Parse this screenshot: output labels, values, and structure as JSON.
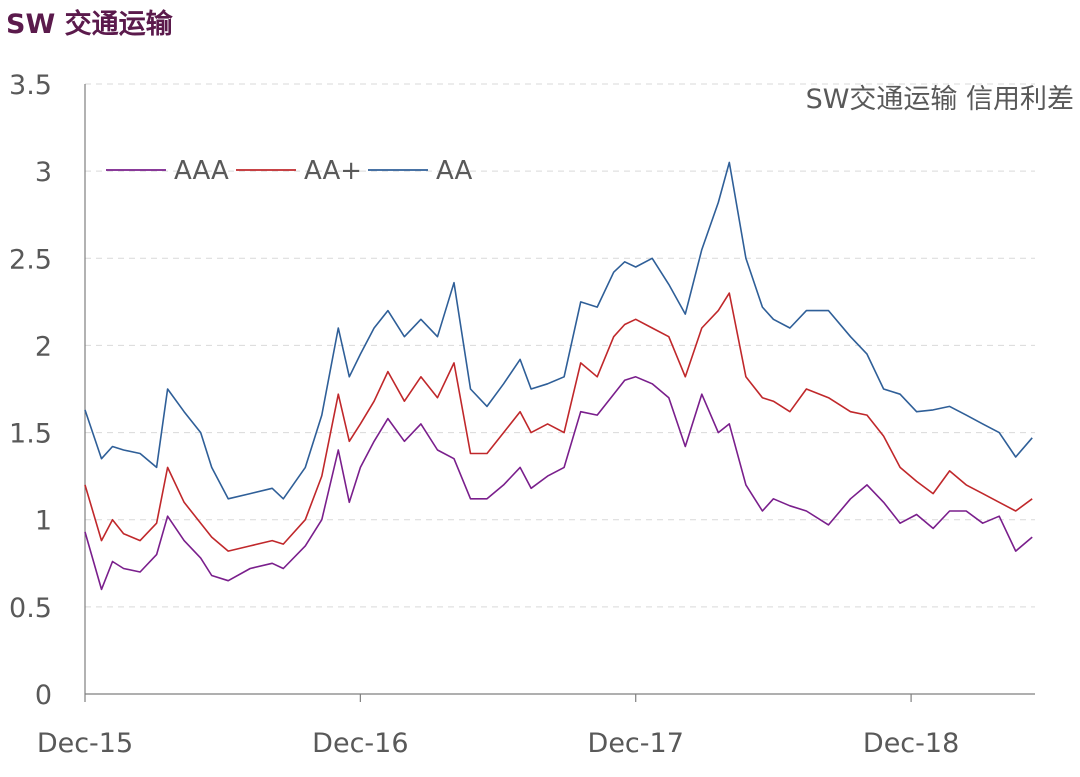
{
  "page": {
    "title": "SW 交通运输"
  },
  "chart_data": {
    "type": "line",
    "title": "SW交通运输 信用利差",
    "ylim": [
      0,
      3.5
    ],
    "yticks": [
      "0",
      "0.5",
      "1",
      "1.5",
      "2",
      "2.5",
      "3",
      "3.5"
    ],
    "xlim": [
      0,
      3.45
    ],
    "xticks": [
      {
        "label": "Dec-15",
        "pos": 0
      },
      {
        "label": "Dec-16",
        "pos": 1
      },
      {
        "label": "Dec-17",
        "pos": 2
      },
      {
        "label": "Dec-18",
        "pos": 3
      }
    ],
    "grid": "horizontal-dashed",
    "legend_position": "top-left",
    "series": [
      {
        "name": "AAA",
        "color": "#7a1f8c",
        "x": [
          0,
          0.06,
          0.1,
          0.14,
          0.2,
          0.26,
          0.3,
          0.36,
          0.42,
          0.46,
          0.52,
          0.6,
          0.68,
          0.72,
          0.8,
          0.86,
          0.92,
          0.96,
          1.0,
          1.05,
          1.1,
          1.16,
          1.22,
          1.28,
          1.34,
          1.4,
          1.46,
          1.52,
          1.58,
          1.62,
          1.68,
          1.74,
          1.8,
          1.86,
          1.92,
          1.96,
          2.0,
          2.06,
          2.12,
          2.18,
          2.24,
          2.3,
          2.34,
          2.4,
          2.46,
          2.5,
          2.56,
          2.62,
          2.7,
          2.78,
          2.84,
          2.9,
          2.96,
          3.02,
          3.08,
          3.14,
          3.2,
          3.26,
          3.32,
          3.38,
          3.44
        ],
        "values": [
          0.93,
          0.6,
          0.76,
          0.72,
          0.7,
          0.8,
          1.02,
          0.88,
          0.78,
          0.68,
          0.65,
          0.72,
          0.75,
          0.72,
          0.85,
          1.0,
          1.4,
          1.1,
          1.3,
          1.45,
          1.58,
          1.45,
          1.55,
          1.4,
          1.35,
          1.12,
          1.12,
          1.2,
          1.3,
          1.18,
          1.25,
          1.3,
          1.62,
          1.6,
          1.72,
          1.8,
          1.82,
          1.78,
          1.7,
          1.42,
          1.72,
          1.5,
          1.55,
          1.2,
          1.05,
          1.12,
          1.08,
          1.05,
          0.97,
          1.12,
          1.2,
          1.1,
          0.98,
          1.03,
          0.95,
          1.05,
          1.05,
          0.98,
          1.02,
          0.82,
          0.9
        ]
      },
      {
        "name": "AA+",
        "color": "#c0282b",
        "x": [
          0,
          0.06,
          0.1,
          0.14,
          0.2,
          0.26,
          0.3,
          0.36,
          0.42,
          0.46,
          0.52,
          0.6,
          0.68,
          0.72,
          0.8,
          0.86,
          0.92,
          0.96,
          1.0,
          1.05,
          1.1,
          1.16,
          1.22,
          1.28,
          1.34,
          1.4,
          1.46,
          1.52,
          1.58,
          1.62,
          1.68,
          1.74,
          1.8,
          1.86,
          1.92,
          1.96,
          2.0,
          2.06,
          2.12,
          2.18,
          2.24,
          2.3,
          2.34,
          2.4,
          2.46,
          2.5,
          2.56,
          2.62,
          2.7,
          2.78,
          2.84,
          2.9,
          2.96,
          3.02,
          3.08,
          3.14,
          3.2,
          3.26,
          3.32,
          3.38,
          3.44
        ],
        "values": [
          1.2,
          0.88,
          1.0,
          0.92,
          0.88,
          0.98,
          1.3,
          1.1,
          0.98,
          0.9,
          0.82,
          0.85,
          0.88,
          0.86,
          1.0,
          1.25,
          1.72,
          1.45,
          1.55,
          1.68,
          1.85,
          1.68,
          1.82,
          1.7,
          1.9,
          1.38,
          1.38,
          1.5,
          1.62,
          1.5,
          1.55,
          1.5,
          1.9,
          1.82,
          2.05,
          2.12,
          2.15,
          2.1,
          2.05,
          1.82,
          2.1,
          2.2,
          2.3,
          1.82,
          1.7,
          1.68,
          1.62,
          1.75,
          1.7,
          1.62,
          1.6,
          1.48,
          1.3,
          1.22,
          1.15,
          1.28,
          1.2,
          1.15,
          1.1,
          1.05,
          1.12
        ]
      },
      {
        "name": "AA",
        "color": "#2f5f98",
        "x": [
          0,
          0.06,
          0.1,
          0.14,
          0.2,
          0.26,
          0.3,
          0.36,
          0.42,
          0.46,
          0.52,
          0.6,
          0.68,
          0.72,
          0.8,
          0.86,
          0.92,
          0.96,
          1.0,
          1.05,
          1.1,
          1.16,
          1.22,
          1.28,
          1.34,
          1.4,
          1.46,
          1.52,
          1.58,
          1.62,
          1.68,
          1.74,
          1.8,
          1.86,
          1.92,
          1.96,
          2.0,
          2.06,
          2.12,
          2.18,
          2.24,
          2.3,
          2.34,
          2.4,
          2.46,
          2.5,
          2.56,
          2.62,
          2.7,
          2.78,
          2.84,
          2.9,
          2.96,
          3.02,
          3.08,
          3.14,
          3.2,
          3.26,
          3.32,
          3.38,
          3.44
        ],
        "values": [
          1.63,
          1.35,
          1.42,
          1.4,
          1.38,
          1.3,
          1.75,
          1.62,
          1.5,
          1.3,
          1.12,
          1.15,
          1.18,
          1.12,
          1.3,
          1.6,
          2.1,
          1.82,
          1.95,
          2.1,
          2.2,
          2.05,
          2.15,
          2.05,
          2.36,
          1.75,
          1.65,
          1.78,
          1.92,
          1.75,
          1.78,
          1.82,
          2.25,
          2.22,
          2.42,
          2.48,
          2.45,
          2.5,
          2.35,
          2.18,
          2.55,
          2.82,
          3.05,
          2.5,
          2.22,
          2.15,
          2.1,
          2.2,
          2.2,
          2.05,
          1.95,
          1.75,
          1.72,
          1.62,
          1.63,
          1.65,
          1.6,
          1.55,
          1.5,
          1.36,
          1.47
        ]
      }
    ]
  }
}
